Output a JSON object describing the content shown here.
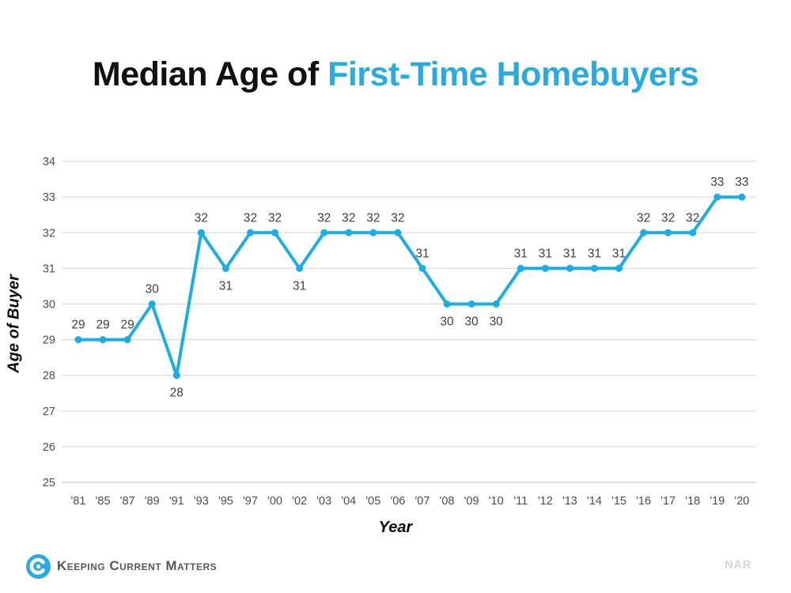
{
  "title": {
    "black": "Median Age of ",
    "blue": "First-Time Homebuyers"
  },
  "colors": {
    "title_blue": "#29ABE2",
    "line": "#1CADE4",
    "grid": "#DCDCDC",
    "axis": "#C8CBCE",
    "tick": "#4D4D4D",
    "data_label": "#3F3F3F",
    "logo_blue": "#29ABE2",
    "logo_text": "#57585B",
    "nar_gray": "#D5D7D9"
  },
  "chart_data": {
    "type": "line",
    "title": "Median Age of First-Time Homebuyers",
    "xlabel": "Year",
    "ylabel": "Age of Buyer",
    "categories": [
      "'81",
      "'85",
      "'87",
      "'89",
      "'91",
      "'93",
      "'95",
      "'97",
      "'00",
      "'02",
      "'03",
      "'04",
      "'05",
      "'06",
      "'07",
      "'08",
      "'09",
      "'10",
      "'11",
      "'12",
      "'13",
      "'14",
      "'15",
      "'16",
      "'17",
      "'18",
      "'19",
      "'20"
    ],
    "values": [
      29,
      29,
      29,
      30,
      28,
      32,
      31,
      32,
      32,
      31,
      32,
      32,
      32,
      32,
      31,
      30,
      30,
      30,
      31,
      31,
      31,
      31,
      31,
      32,
      32,
      32,
      33,
      33
    ],
    "label_position": [
      "above",
      "above",
      "above",
      "above",
      "below",
      "above",
      "below",
      "above",
      "above",
      "below",
      "above",
      "above",
      "above",
      "above",
      "above",
      "below",
      "below",
      "below",
      "above",
      "above",
      "above",
      "above",
      "above",
      "above",
      "above",
      "above",
      "above",
      "above"
    ],
    "ylim": [
      25,
      34
    ],
    "yticks": [
      25,
      26,
      27,
      28,
      29,
      30,
      31,
      32,
      33,
      34
    ],
    "grid": true,
    "legend": "none"
  },
  "footer": {
    "logo_text": "Keeping Current Matters",
    "source": "NAR"
  }
}
